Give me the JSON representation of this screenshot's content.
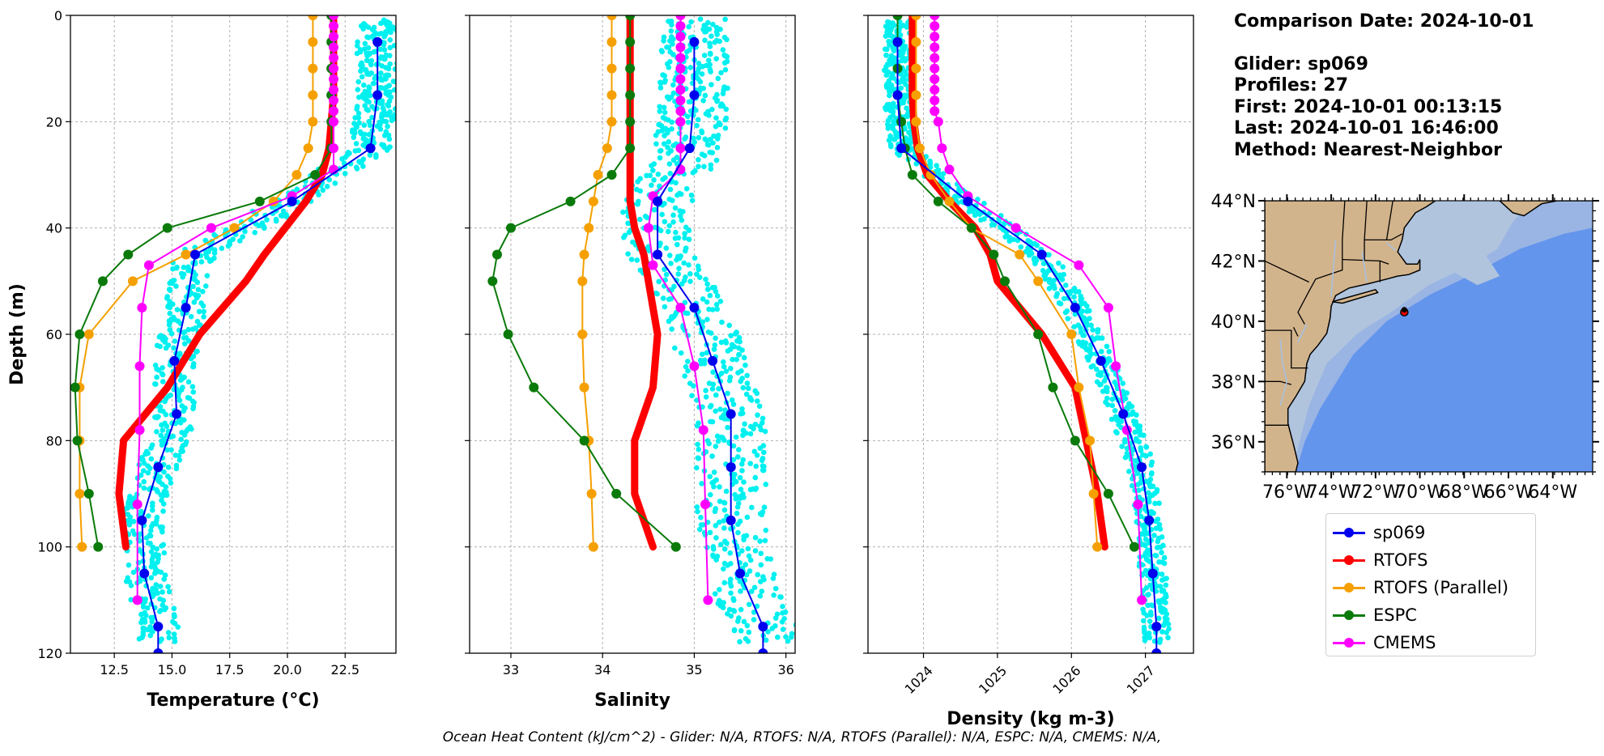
{
  "info": {
    "comparison_date": "Comparison Date: 2024-10-01",
    "glider": "Glider: sp069",
    "profiles": "Profiles: 27",
    "first": "First: 2024-10-01 00:13:15",
    "last": "Last: 2024-10-01 16:46:00",
    "method": "Method: Nearest-Neighbor"
  },
  "caption": "Ocean Heat Content (kJ/cm^2) - Glider: N/A,  RTOFS: N/A,  RTOFS (Parallel): N/A,  ESPC: N/A,  CMEMS: N/A,",
  "colors": {
    "sp069": "#0000ee",
    "RTOFS": "#ff0000",
    "RTOFS (Parallel)": "#f5a000",
    "ESPC": "#0a7a0a",
    "CMEMS": "#ff00ff",
    "raw_glider": "#00f0f0",
    "land": "#d2b48c",
    "shelf": "#b0c4de",
    "slope": "#9ab5e3",
    "deep": "#6495ed"
  },
  "legend": [
    "sp069",
    "RTOFS",
    "RTOFS (Parallel)",
    "ESPC",
    "CMEMS"
  ],
  "chart_data": [
    {
      "type": "line",
      "id": "temperature",
      "title": "",
      "xlabel": "Temperature (°C)",
      "ylabel": "Depth (m)",
      "xlim": [
        10.6,
        24.7
      ],
      "ylim": [
        120,
        0
      ],
      "xticks": [
        12.5,
        15.0,
        17.5,
        20.0,
        22.5
      ],
      "xtick_labels": [
        "12.5",
        "15.0",
        "17.5",
        "20.0",
        "22.5"
      ],
      "yticks": [
        0,
        20,
        40,
        60,
        80,
        100,
        120
      ],
      "ytick_labels": [
        "0",
        "20",
        "40",
        "60",
        "80",
        "100",
        "120"
      ],
      "grid": true,
      "series": [
        {
          "name": "sp069",
          "depth": [
            5,
            15,
            25,
            35,
            45,
            55,
            65,
            75,
            85,
            95,
            105,
            115,
            120
          ],
          "values": [
            23.9,
            23.9,
            23.6,
            20.2,
            16.0,
            15.6,
            15.1,
            15.2,
            14.4,
            13.7,
            13.8,
            14.4,
            14.4
          ]
        },
        {
          "name": "RTOFS",
          "depth": [
            0,
            5,
            10,
            15,
            20,
            25,
            30,
            35,
            40,
            45,
            50,
            60,
            70,
            80,
            90,
            100
          ],
          "values": [
            22.0,
            22.0,
            22.0,
            22.0,
            21.9,
            21.8,
            21.5,
            20.8,
            19.9,
            19.0,
            18.2,
            16.2,
            14.8,
            12.9,
            12.7,
            13.0
          ]
        },
        {
          "name": "RTOFS (Parallel)",
          "depth": [
            0,
            5,
            10,
            15,
            20,
            25,
            30,
            35,
            40,
            45,
            50,
            60,
            70,
            80,
            90,
            100
          ],
          "values": [
            21.1,
            21.1,
            21.1,
            21.1,
            21.1,
            20.9,
            20.4,
            19.4,
            17.7,
            15.6,
            13.3,
            11.4,
            11.0,
            11.0,
            11.0,
            11.1
          ]
        },
        {
          "name": "ESPC",
          "depth": [
            0,
            5,
            10,
            15,
            20,
            25,
            30,
            35,
            40,
            45,
            50,
            60,
            70,
            80,
            90,
            100
          ],
          "values": [
            21.9,
            21.9,
            21.9,
            21.9,
            21.9,
            21.9,
            21.2,
            18.8,
            14.8,
            13.1,
            12.0,
            11.0,
            10.8,
            10.9,
            11.4,
            11.8
          ]
        },
        {
          "name": "CMEMS",
          "depth": [
            0,
            2,
            4,
            6,
            8,
            10,
            12,
            14,
            16,
            18,
            20,
            25,
            29,
            34,
            40,
            47,
            55,
            66,
            78,
            92,
            110
          ],
          "values": [
            22.0,
            22.0,
            22.0,
            22.0,
            22.0,
            22.0,
            22.0,
            22.0,
            22.0,
            22.0,
            22.0,
            22.0,
            22.0,
            20.2,
            16.7,
            14.0,
            13.7,
            13.6,
            13.6,
            13.5,
            13.5
          ]
        }
      ]
    },
    {
      "type": "line",
      "id": "salinity",
      "title": "",
      "xlabel": "Salinity",
      "ylabel": "",
      "xlim": [
        32.55,
        36.1
      ],
      "ylim": [
        120,
        0
      ],
      "xticks": [
        33,
        34,
        35,
        36
      ],
      "xtick_labels": [
        "33",
        "34",
        "35",
        "36"
      ],
      "yticks": [
        0,
        20,
        40,
        60,
        80,
        100,
        120
      ],
      "grid": true,
      "series": [
        {
          "name": "sp069",
          "depth": [
            5,
            15,
            25,
            35,
            45,
            55,
            65,
            75,
            85,
            95,
            105,
            115,
            120
          ],
          "values": [
            35.0,
            35.0,
            34.95,
            34.6,
            34.6,
            35.0,
            35.2,
            35.4,
            35.4,
            35.4,
            35.5,
            35.75,
            35.75
          ]
        },
        {
          "name": "RTOFS",
          "depth": [
            0,
            5,
            10,
            15,
            20,
            25,
            30,
            35,
            40,
            45,
            50,
            60,
            70,
            80,
            90,
            100
          ],
          "values": [
            34.3,
            34.3,
            34.3,
            34.3,
            34.3,
            34.3,
            34.3,
            34.3,
            34.35,
            34.45,
            34.5,
            34.6,
            34.55,
            34.35,
            34.35,
            34.55
          ]
        },
        {
          "name": "RTOFS (Parallel)",
          "depth": [
            0,
            5,
            10,
            15,
            20,
            25,
            30,
            35,
            40,
            45,
            50,
            60,
            70,
            80,
            90,
            100
          ],
          "values": [
            34.1,
            34.1,
            34.1,
            34.1,
            34.1,
            34.05,
            33.95,
            33.9,
            33.85,
            33.8,
            33.78,
            33.78,
            33.8,
            33.85,
            33.88,
            33.9
          ]
        },
        {
          "name": "ESPC",
          "depth": [
            0,
            5,
            10,
            15,
            20,
            25,
            30,
            35,
            40,
            45,
            50,
            60,
            70,
            80,
            90,
            100
          ],
          "values": [
            34.3,
            34.3,
            34.3,
            34.3,
            34.3,
            34.3,
            34.1,
            33.65,
            33.0,
            32.85,
            32.8,
            32.97,
            33.25,
            33.8,
            34.15,
            34.8
          ]
        },
        {
          "name": "CMEMS",
          "depth": [
            0,
            2,
            4,
            6,
            8,
            10,
            12,
            14,
            16,
            18,
            20,
            25,
            29,
            34,
            40,
            47,
            55,
            66,
            78,
            92,
            110
          ],
          "values": [
            34.85,
            34.85,
            34.85,
            34.85,
            34.85,
            34.85,
            34.85,
            34.85,
            34.85,
            34.85,
            34.85,
            34.85,
            34.85,
            34.55,
            34.5,
            34.55,
            34.85,
            35.0,
            35.1,
            35.12,
            35.15
          ]
        }
      ]
    },
    {
      "type": "line",
      "id": "density",
      "title": "",
      "xlabel": "Density (kg m-3)",
      "ylabel": "",
      "xlim": [
        1023.25,
        1027.65
      ],
      "ylim": [
        120,
        0
      ],
      "xticks": [
        1024,
        1025,
        1026,
        1027
      ],
      "xtick_labels": [
        "1024",
        "1025",
        "1026",
        "1027"
      ],
      "yticks": [
        0,
        20,
        40,
        60,
        80,
        100,
        120
      ],
      "grid": true,
      "series": [
        {
          "name": "sp069",
          "depth": [
            5,
            15,
            25,
            35,
            45,
            55,
            65,
            75,
            85,
            95,
            105,
            115,
            120
          ],
          "values": [
            1023.65,
            1023.65,
            1023.7,
            1024.6,
            1025.6,
            1026.05,
            1026.4,
            1026.7,
            1026.95,
            1027.05,
            1027.1,
            1027.15,
            1027.15
          ]
        },
        {
          "name": "RTOFS",
          "depth": [
            0,
            5,
            10,
            15,
            20,
            25,
            30,
            35,
            40,
            45,
            50,
            60,
            70,
            80,
            90,
            100
          ],
          "values": [
            1023.85,
            1023.85,
            1023.85,
            1023.85,
            1023.87,
            1023.92,
            1024.05,
            1024.35,
            1024.7,
            1024.9,
            1025.0,
            1025.6,
            1026.05,
            1026.2,
            1026.35,
            1026.45
          ]
        },
        {
          "name": "RTOFS (Parallel)",
          "depth": [
            0,
            5,
            10,
            15,
            20,
            25,
            30,
            35,
            40,
            45,
            50,
            60,
            70,
            80,
            90,
            100
          ],
          "values": [
            1023.9,
            1023.9,
            1023.9,
            1023.9,
            1023.9,
            1023.95,
            1024.1,
            1024.35,
            1024.65,
            1025.3,
            1025.55,
            1026.0,
            1026.1,
            1026.25,
            1026.3,
            1026.35
          ]
        },
        {
          "name": "ESPC",
          "depth": [
            0,
            5,
            10,
            15,
            20,
            25,
            30,
            35,
            40,
            45,
            50,
            60,
            70,
            80,
            90,
            100
          ],
          "values": [
            1023.65,
            1023.65,
            1023.65,
            1023.65,
            1023.7,
            1023.75,
            1023.85,
            1024.2,
            1024.65,
            1024.95,
            1025.1,
            1025.55,
            1025.75,
            1026.05,
            1026.5,
            1026.85
          ]
        },
        {
          "name": "CMEMS",
          "depth": [
            0,
            2,
            4,
            6,
            8,
            10,
            12,
            14,
            16,
            18,
            20,
            25,
            29,
            34,
            40,
            47,
            55,
            66,
            78,
            92,
            110
          ],
          "values": [
            1024.15,
            1024.15,
            1024.15,
            1024.15,
            1024.15,
            1024.15,
            1024.15,
            1024.15,
            1024.15,
            1024.15,
            1024.2,
            1024.25,
            1024.35,
            1024.6,
            1025.25,
            1026.1,
            1026.5,
            1026.6,
            1026.75,
            1026.9,
            1026.95
          ]
        }
      ]
    },
    {
      "type": "map",
      "id": "location-map",
      "lon_range": [
        -77,
        -62.2
      ],
      "lat_range": [
        35,
        44
      ],
      "lat_ticks": [
        36,
        38,
        40,
        42,
        44
      ],
      "lat_tick_labels": [
        "36°N",
        "38°N",
        "40°N",
        "42°N",
        "44°N"
      ],
      "lon_ticks": [
        -76,
        -74,
        -72,
        -70,
        -68,
        -66,
        -64
      ],
      "lon_tick_labels": [
        "76°W",
        "74°W",
        "72°W",
        "70°W",
        "68°W",
        "66°W",
        "64°W"
      ],
      "glider_position": {
        "lon": -70.7,
        "lat": 40.3
      }
    }
  ]
}
